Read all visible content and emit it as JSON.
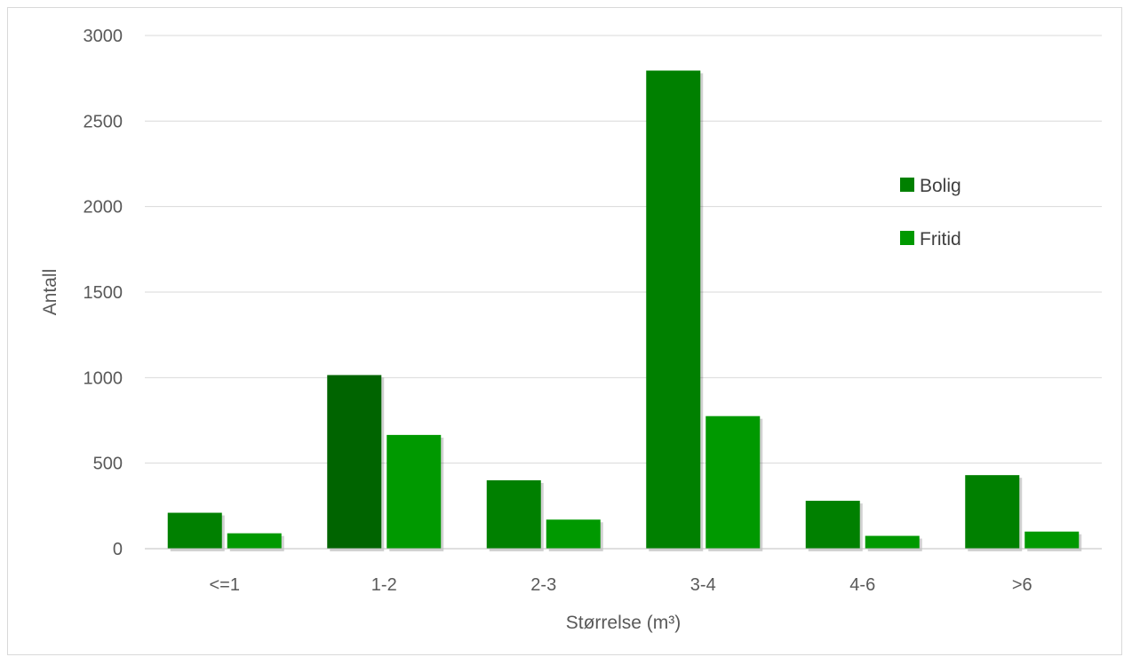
{
  "chart_data": {
    "type": "bar",
    "categories": [
      "<=1",
      "1-2",
      "2-3",
      "3-4",
      "4-6",
      ">6"
    ],
    "series": [
      {
        "name": "Bolig",
        "values": [
          210,
          1015,
          400,
          2795,
          280,
          430
        ],
        "color": "#008000"
      },
      {
        "name": "Fritid",
        "values": [
          90,
          665,
          170,
          775,
          75,
          100
        ],
        "color": "#009900"
      }
    ],
    "highlight": {
      "series": 0,
      "index": 1,
      "color": "#006400"
    },
    "xlabel": "Størrelse (m³)",
    "ylabel": "Antall",
    "ylim": [
      0,
      3000
    ],
    "yticks": [
      0,
      500,
      1000,
      1500,
      2000,
      2500,
      3000
    ],
    "grid": true,
    "legend": "right"
  }
}
